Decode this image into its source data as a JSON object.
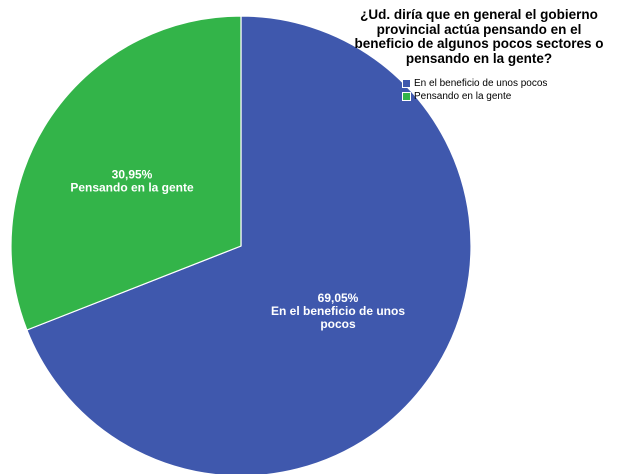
{
  "chart_data": {
    "type": "pie",
    "title": "¿Ud. diría que en general el gobierno provincial actúa pensando en el beneficio de algunos pocos sectores o pensando en la gente?",
    "title_lines": [
      "¿Ud. diría que en general el gobierno",
      "provincial actúa pensando en el",
      "beneficio de algunos pocos sectores o",
      "pensando en la gente?"
    ],
    "legend_position": "top-right",
    "slices": [
      {
        "name": "En el beneficio de unos pocos",
        "value": 69.05,
        "value_label": "69,05%",
        "label_lines": [
          "En el beneficio de unos",
          "pocos"
        ],
        "color": "#3f58ad"
      },
      {
        "name": "Pensando en la gente",
        "value": 30.95,
        "value_label": "30,95%",
        "label_lines": [
          "Pensando en la gente"
        ],
        "color": "#33b449"
      }
    ]
  }
}
